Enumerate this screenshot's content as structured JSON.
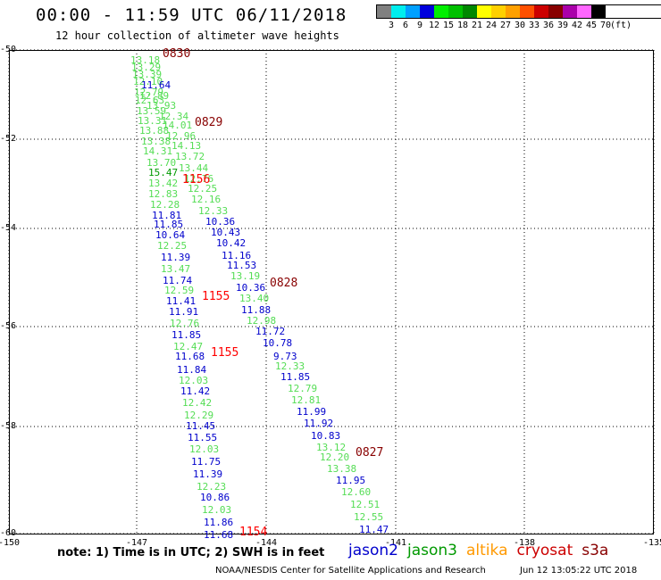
{
  "header": {
    "title": "00:00 - 11:59 UTC 06/11/2018",
    "subtitle": "12 hour collection of altimeter wave heights"
  },
  "legend": {
    "colors": [
      "#808080",
      "#00eeee",
      "#00a0ff",
      "#0000dd",
      "#00ee00",
      "#00c000",
      "#008800",
      "#ffff00",
      "#ffd000",
      "#ffa000",
      "#ff5000",
      "#cc0000",
      "#880000",
      "#aa00aa",
      "#ff66ff",
      "#000000"
    ],
    "labels": [
      "3",
      "6",
      "9",
      "12",
      "15",
      "18",
      "21",
      "24",
      "27",
      "30",
      "33",
      "36",
      "39",
      "42",
      "45",
      "70",
      "(ft)"
    ]
  },
  "axes": {
    "y_labels": [
      "-50",
      "-52",
      "-54",
      "-56",
      "-58",
      "-60"
    ],
    "x_labels": [
      "-150",
      "-147",
      "-144",
      "-141",
      "-138",
      "-135"
    ]
  },
  "observations": [
    {
      "v": "13.18",
      "c": "#55dd55"
    },
    {
      "v": "13.29",
      "c": "#55dd55"
    },
    {
      "v": "13.39",
      "c": "#55dd55"
    },
    {
      "v": "12.10",
      "c": "#55dd55"
    },
    {
      "v": "11.64",
      "c": "#0000cc"
    },
    {
      "v": "12.79",
      "c": "#55dd55"
    },
    {
      "v": "12.89",
      "c": "#55dd55"
    },
    {
      "v": "12.63",
      "c": "#55dd55"
    },
    {
      "v": "13.93",
      "c": "#55dd55"
    },
    {
      "v": "13.59",
      "c": "#55dd55"
    },
    {
      "v": "12.34",
      "c": "#55dd55"
    },
    {
      "v": "13.31",
      "c": "#55dd55"
    },
    {
      "v": "14.01",
      "c": "#55dd55"
    },
    {
      "v": "13.88",
      "c": "#55dd55"
    },
    {
      "v": "12.96",
      "c": "#55dd55"
    },
    {
      "v": "13.38",
      "c": "#55dd55"
    },
    {
      "v": "14.13",
      "c": "#55dd55"
    },
    {
      "v": "14.31",
      "c": "#55dd55"
    },
    {
      "v": "13.72",
      "c": "#55dd55"
    },
    {
      "v": "13.70",
      "c": "#55dd55"
    },
    {
      "v": "13.44",
      "c": "#55dd55"
    },
    {
      "v": "15.47",
      "c": "#009900"
    },
    {
      "v": "12.76",
      "c": "#55dd55"
    },
    {
      "v": "13.42",
      "c": "#55dd55"
    },
    {
      "v": "12.25",
      "c": "#55dd55"
    },
    {
      "v": "12.83",
      "c": "#55dd55"
    },
    {
      "v": "12.16",
      "c": "#55dd55"
    },
    {
      "v": "12.28",
      "c": "#55dd55"
    },
    {
      "v": "12.33",
      "c": "#55dd55"
    },
    {
      "v": "11.81",
      "c": "#0000cc"
    },
    {
      "v": "10.36",
      "c": "#0000cc"
    },
    {
      "v": "11.85",
      "c": "#0000cc"
    },
    {
      "v": "10.43",
      "c": "#0000cc"
    },
    {
      "v": "10.64",
      "c": "#0000cc"
    },
    {
      "v": "10.42",
      "c": "#0000cc"
    },
    {
      "v": "12.25",
      "c": "#55dd55"
    },
    {
      "v": "11.16",
      "c": "#0000cc"
    },
    {
      "v": "11.39",
      "c": "#0000cc"
    },
    {
      "v": "11.53",
      "c": "#0000cc"
    },
    {
      "v": "13.47",
      "c": "#55dd55"
    },
    {
      "v": "13.19",
      "c": "#55dd55"
    },
    {
      "v": "11.74",
      "c": "#0000cc"
    },
    {
      "v": "10.36",
      "c": "#0000cc"
    },
    {
      "v": "12.59",
      "c": "#55dd55"
    },
    {
      "v": "13.40",
      "c": "#55dd55"
    },
    {
      "v": "11.41",
      "c": "#0000cc"
    },
    {
      "v": "11.88",
      "c": "#0000cc"
    },
    {
      "v": "11.91",
      "c": "#0000cc"
    },
    {
      "v": "12.98",
      "c": "#55dd55"
    },
    {
      "v": "12.76",
      "c": "#55dd55"
    },
    {
      "v": "11.72",
      "c": "#0000cc"
    },
    {
      "v": "11.85",
      "c": "#0000cc"
    },
    {
      "v": "10.78",
      "c": "#0000cc"
    },
    {
      "v": "12.47",
      "c": "#55dd55"
    },
    {
      "v": "9.73",
      "c": "#0000cc"
    },
    {
      "v": "11.68",
      "c": "#0000cc"
    },
    {
      "v": "12.33",
      "c": "#55dd55"
    },
    {
      "v": "11.84",
      "c": "#0000cc"
    },
    {
      "v": "11.85",
      "c": "#0000cc"
    },
    {
      "v": "12.03",
      "c": "#55dd55"
    },
    {
      "v": "12.79",
      "c": "#55dd55"
    },
    {
      "v": "11.42",
      "c": "#0000cc"
    },
    {
      "v": "12.81",
      "c": "#55dd55"
    },
    {
      "v": "12.42",
      "c": "#55dd55"
    },
    {
      "v": "11.99",
      "c": "#0000cc"
    },
    {
      "v": "12.29",
      "c": "#55dd55"
    },
    {
      "v": "11.92",
      "c": "#0000cc"
    },
    {
      "v": "11.45",
      "c": "#0000cc"
    },
    {
      "v": "10.83",
      "c": "#0000cc"
    },
    {
      "v": "11.55",
      "c": "#0000cc"
    },
    {
      "v": "13.12",
      "c": "#55dd55"
    },
    {
      "v": "12.03",
      "c": "#55dd55"
    },
    {
      "v": "12.20",
      "c": "#55dd55"
    },
    {
      "v": "11.75",
      "c": "#0000cc"
    },
    {
      "v": "13.38",
      "c": "#55dd55"
    },
    {
      "v": "11.39",
      "c": "#0000cc"
    },
    {
      "v": "11.95",
      "c": "#0000cc"
    },
    {
      "v": "12.23",
      "c": "#55dd55"
    },
    {
      "v": "12.60",
      "c": "#55dd55"
    },
    {
      "v": "10.86",
      "c": "#0000cc"
    },
    {
      "v": "12.51",
      "c": "#55dd55"
    },
    {
      "v": "12.03",
      "c": "#55dd55"
    },
    {
      "v": "12.55",
      "c": "#55dd55"
    },
    {
      "v": "11.86",
      "c": "#0000cc"
    },
    {
      "v": "11.47",
      "c": "#0000cc"
    },
    {
      "v": "11.68",
      "c": "#0000cc"
    }
  ],
  "time_labels": [
    {
      "t": "0830",
      "c": "#880000"
    },
    {
      "t": "0829",
      "c": "#880000"
    },
    {
      "t": "1156",
      "c": "#ff0000"
    },
    {
      "t": "0828",
      "c": "#880000"
    },
    {
      "t": "1155",
      "c": "#ff0000"
    },
    {
      "t": "1155",
      "c": "#ff0000"
    },
    {
      "t": "0827",
      "c": "#880000"
    },
    {
      "t": "1154",
      "c": "#ff0000"
    }
  ],
  "note": "note: 1) Time is in UTC; 2) SWH is in feet",
  "satellites": [
    {
      "name": "jason2",
      "color": "#0000cc"
    },
    {
      "name": "jason3",
      "color": "#009900"
    },
    {
      "name": "altika",
      "color": "#ff9900"
    },
    {
      "name": "cryosat",
      "color": "#cc0000"
    },
    {
      "name": "s3a",
      "color": "#880000"
    }
  ],
  "footer": {
    "credit": "NOAA/NESDIS Center for Satellite Applications and Research",
    "timestamp": "Jun 12 13:05:22 UTC 2018"
  }
}
